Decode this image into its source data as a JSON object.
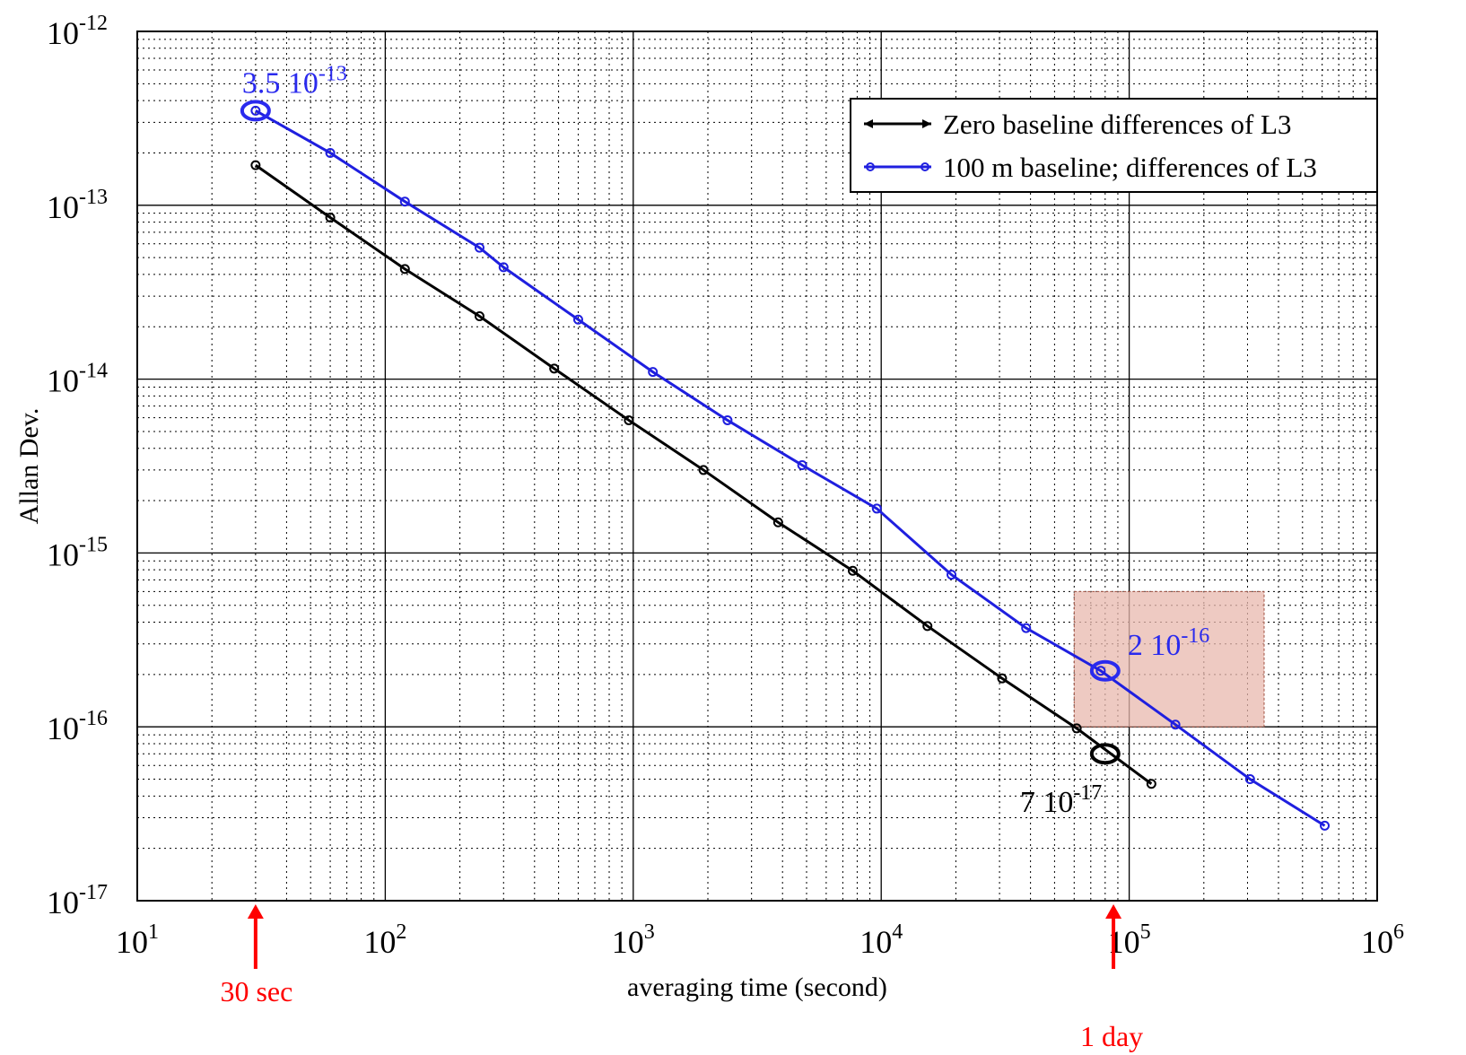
{
  "chart_data": {
    "type": "line",
    "title": "",
    "xlabel": "averaging time (second)",
    "ylabel": "Allan Dev.",
    "xscale": "log",
    "yscale": "log",
    "xlim": [
      10,
      1000000
    ],
    "ylim": [
      1e-17,
      1e-12
    ],
    "grid": "major solid, minor dotted",
    "x_ticks": [
      {
        "base": "10",
        "exp": "1",
        "value": 10
      },
      {
        "base": "10",
        "exp": "2",
        "value": 100
      },
      {
        "base": "10",
        "exp": "3",
        "value": 1000
      },
      {
        "base": "10",
        "exp": "4",
        "value": 10000
      },
      {
        "base": "10",
        "exp": "5",
        "value": 100000
      },
      {
        "base": "10",
        "exp": "6",
        "value": 1000000
      }
    ],
    "y_ticks": [
      {
        "base": "10",
        "exp": "-12",
        "value": 1e-12
      },
      {
        "base": "10",
        "exp": "-13",
        "value": 1e-13
      },
      {
        "base": "10",
        "exp": "-14",
        "value": 1e-14
      },
      {
        "base": "10",
        "exp": "-15",
        "value": 1e-15
      },
      {
        "base": "10",
        "exp": "-16",
        "value": 1e-16
      },
      {
        "base": "10",
        "exp": "-17",
        "value": 1e-17
      }
    ],
    "legend_position": "top-right",
    "series": [
      {
        "name": "Zero baseline differences of L3",
        "color": "#000000",
        "x": [
          30,
          60,
          120,
          240,
          480,
          960,
          1920,
          3840,
          7680,
          15360,
          30720,
          61440,
          122880
        ],
        "y": [
          1.7e-13,
          8.5e-14,
          4.3e-14,
          2.3e-14,
          1.15e-14,
          5.8e-15,
          3e-15,
          1.5e-15,
          7.9e-16,
          3.8e-16,
          1.9e-16,
          9.8e-17,
          4.7e-17
        ]
      },
      {
        "name": "100 m baseline; differences of L3",
        "color": "#1f1fdf",
        "x": [
          30,
          60,
          120,
          240,
          300,
          600,
          1200,
          2400,
          4800,
          9600,
          19200,
          38400,
          76800,
          153600,
          307200,
          614400
        ],
        "y": [
          3.5e-13,
          2e-13,
          1.05e-13,
          5.7e-14,
          4.4e-14,
          2.2e-14,
          1.1e-14,
          5.8e-15,
          3.2e-15,
          1.8e-15,
          7.5e-16,
          3.7e-16,
          2.1e-16,
          1.03e-16,
          5e-17,
          2.7e-17
        ]
      }
    ],
    "annotations": [
      {
        "id": "ann_blue_start",
        "text_base": "3.5 10",
        "text_exp": "-13",
        "x": 30,
        "y": 3.5e-13,
        "color": "#2a2aee"
      },
      {
        "id": "ann_blue_day",
        "text_base": "2 10",
        "text_exp": "-16",
        "x": 80000,
        "y": 2.1e-16,
        "color": "#2a2aee"
      },
      {
        "id": "ann_black_day",
        "text_base": "7 10",
        "text_exp": "-17",
        "x": 80000,
        "y": 7e-17,
        "color": "#000000"
      }
    ],
    "highlight_box": {
      "x": [
        60000,
        350000
      ],
      "y": [
        1e-16,
        6e-16
      ],
      "fill": "#e8b8ae",
      "stroke": "#a05040"
    },
    "markers": [
      {
        "label": "30 sec",
        "x": 30,
        "color": "#ff0000"
      },
      {
        "label": "1 day",
        "x": 86400,
        "color": "#ff0000"
      }
    ]
  }
}
